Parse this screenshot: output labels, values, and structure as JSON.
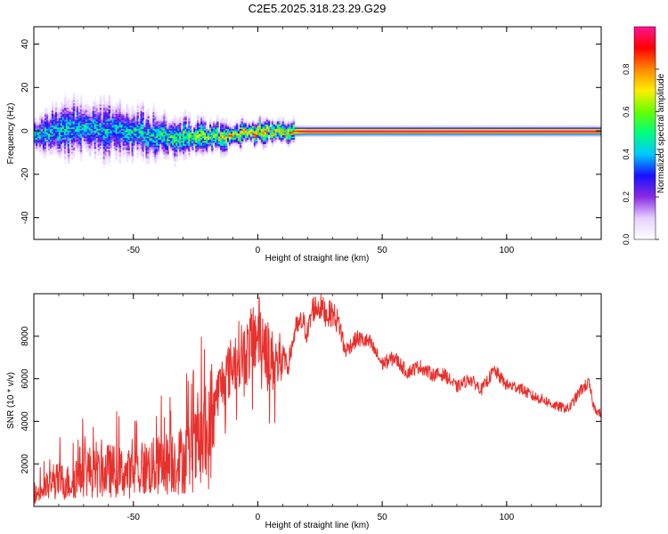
{
  "figure_title": "C2E5.2025.318.23.29.G29",
  "colors": {
    "snr_line": "#e8302c",
    "frame": "#000000",
    "colormap": [
      "#ffffff",
      "#e6d0ff",
      "#8a2be2",
      "#1a10ff",
      "#00c8ff",
      "#00ff7f",
      "#66ff00",
      "#ffee00",
      "#ff8800",
      "#ff0000",
      "#ff1493"
    ]
  },
  "chart_data": [
    {
      "type": "heatmap",
      "panel": "top",
      "title": "C2E5.2025.318.23.29.G29",
      "xlabel": "Height of straight line (km)",
      "ylabel": "Frequency (Hz)",
      "xlim": [
        -90,
        138
      ],
      "ylim": [
        -50,
        48
      ],
      "xticks": [
        -50,
        0,
        50,
        100
      ],
      "yticks": [
        -40,
        -20,
        0,
        20,
        40
      ],
      "colorbar": {
        "label": "Normalized spectral amplitude",
        "range": [
          0,
          1
        ],
        "ticks": [
          0.0,
          0.2,
          0.4,
          0.6,
          0.8
        ]
      },
      "ridge": [
        {
          "x": -90,
          "f": -1.5,
          "w": 3.0,
          "amp": 0.45
        },
        {
          "x": -80,
          "f": 0.5,
          "w": 4.0,
          "amp": 0.45
        },
        {
          "x": -70,
          "f": 1.5,
          "w": 4.5,
          "amp": 0.42
        },
        {
          "x": -60,
          "f": 1.0,
          "w": 4.5,
          "amp": 0.42
        },
        {
          "x": -50,
          "f": -0.5,
          "w": 4.0,
          "amp": 0.45
        },
        {
          "x": -40,
          "f": -2.5,
          "w": 3.5,
          "amp": 0.5
        },
        {
          "x": -30,
          "f": -3.0,
          "w": 3.0,
          "amp": 0.55
        },
        {
          "x": -20,
          "f": -2.5,
          "w": 2.5,
          "amp": 0.62
        },
        {
          "x": -10,
          "f": -1.5,
          "w": 2.0,
          "amp": 0.72
        },
        {
          "x": 0,
          "f": 0.0,
          "w": 1.8,
          "amp": 0.78
        },
        {
          "x": 10,
          "f": 0.0,
          "w": 1.6,
          "amp": 0.72
        },
        {
          "x": 20,
          "f": 0.0,
          "w": 1.4,
          "amp": 0.98
        },
        {
          "x": 60,
          "f": 0.0,
          "w": 1.4,
          "amp": 0.98
        },
        {
          "x": 100,
          "f": 0.0,
          "w": 1.4,
          "amp": 0.97
        },
        {
          "x": 138,
          "f": 0.0,
          "w": 1.4,
          "amp": 0.98
        }
      ]
    },
    {
      "type": "line",
      "panel": "bottom",
      "xlabel": "Height of straight line (km)",
      "ylabel": "SNR (10 * v/v)",
      "xlim": [
        -90,
        138
      ],
      "ylim": [
        0,
        10000
      ],
      "xticks": [
        -50,
        0,
        50,
        100
      ],
      "yticks": [
        2000,
        4000,
        6000,
        8000
      ],
      "series": [
        {
          "name": "SNR",
          "x": [
            -90,
            -85,
            -80,
            -75,
            -72,
            -70,
            -65,
            -60,
            -55,
            -50,
            -45,
            -40,
            -35,
            -30,
            -25,
            -22,
            -20,
            -18,
            -15,
            -12,
            -10,
            -7,
            -5,
            -2,
            0,
            3,
            5,
            8,
            10,
            12,
            15,
            18,
            20,
            22,
            25,
            28,
            30,
            33,
            35,
            40,
            45,
            50,
            55,
            60,
            65,
            70,
            75,
            80,
            85,
            90,
            95,
            100,
            105,
            110,
            115,
            120,
            125,
            130,
            133,
            135,
            138
          ],
          "y": [
            500,
            900,
            1200,
            1100,
            1600,
            1800,
            1500,
            1700,
            1600,
            1500,
            1800,
            1900,
            2100,
            2200,
            2600,
            3000,
            2900,
            4800,
            5700,
            6300,
            6700,
            7300,
            7100,
            7800,
            8200,
            7800,
            6900,
            6700,
            7200,
            6500,
            8300,
            8700,
            8100,
            9300,
            9400,
            9000,
            9100,
            8500,
            7300,
            7900,
            7700,
            6700,
            7000,
            6300,
            6600,
            6200,
            6200,
            5600,
            6000,
            5500,
            6400,
            5700,
            5600,
            5200,
            5000,
            4700,
            4600,
            5500,
            5800,
            4700,
            4300
          ]
        }
      ]
    }
  ]
}
